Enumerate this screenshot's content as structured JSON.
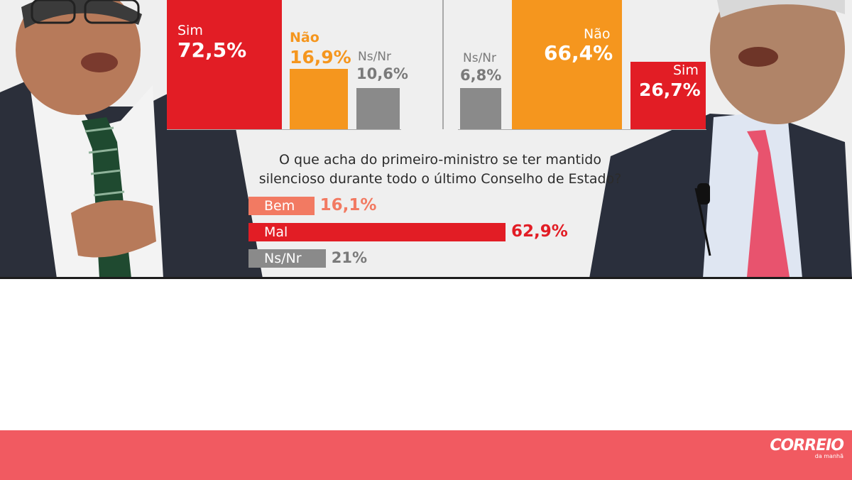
{
  "colors": {
    "sim": "#e21d25",
    "nao": "#f5961e",
    "nsnr": "#8a8a8a",
    "bem": "#f27a62",
    "mal": "#e21d25",
    "footer": "#f15a61",
    "background": "#efefef"
  },
  "chart_data": [
    {
      "type": "bar",
      "categories": [
        "Sim",
        "Não",
        "Ns/Nr"
      ],
      "values": [
        72.5,
        16.9,
        10.6
      ],
      "value_labels": [
        "72,5%",
        "16,9%",
        "10,6%"
      ],
      "ylim": [
        0,
        100
      ]
    },
    {
      "type": "bar",
      "categories": [
        "Ns/Nr",
        "Não",
        "Sim"
      ],
      "values": [
        6.8,
        66.4,
        26.7
      ],
      "value_labels": [
        "6,8%",
        "66,4%",
        "26,7%"
      ],
      "ylim": [
        0,
        100
      ]
    },
    {
      "type": "bar",
      "orientation": "horizontal",
      "title_line1": "O que acha do primeiro-ministro se ter mantido",
      "title_line2": "silencioso durante todo o último Conselho de Estado?",
      "categories": [
        "Bem",
        "Mal",
        "Ns/Nr"
      ],
      "values": [
        16.1,
        62.9,
        21
      ],
      "value_labels": [
        "16,1%",
        "62,9%",
        "21%"
      ],
      "xlim": [
        0,
        100
      ]
    }
  ],
  "footer": {
    "logo_main": "CORREIO",
    "logo_sub": "da manhã"
  }
}
